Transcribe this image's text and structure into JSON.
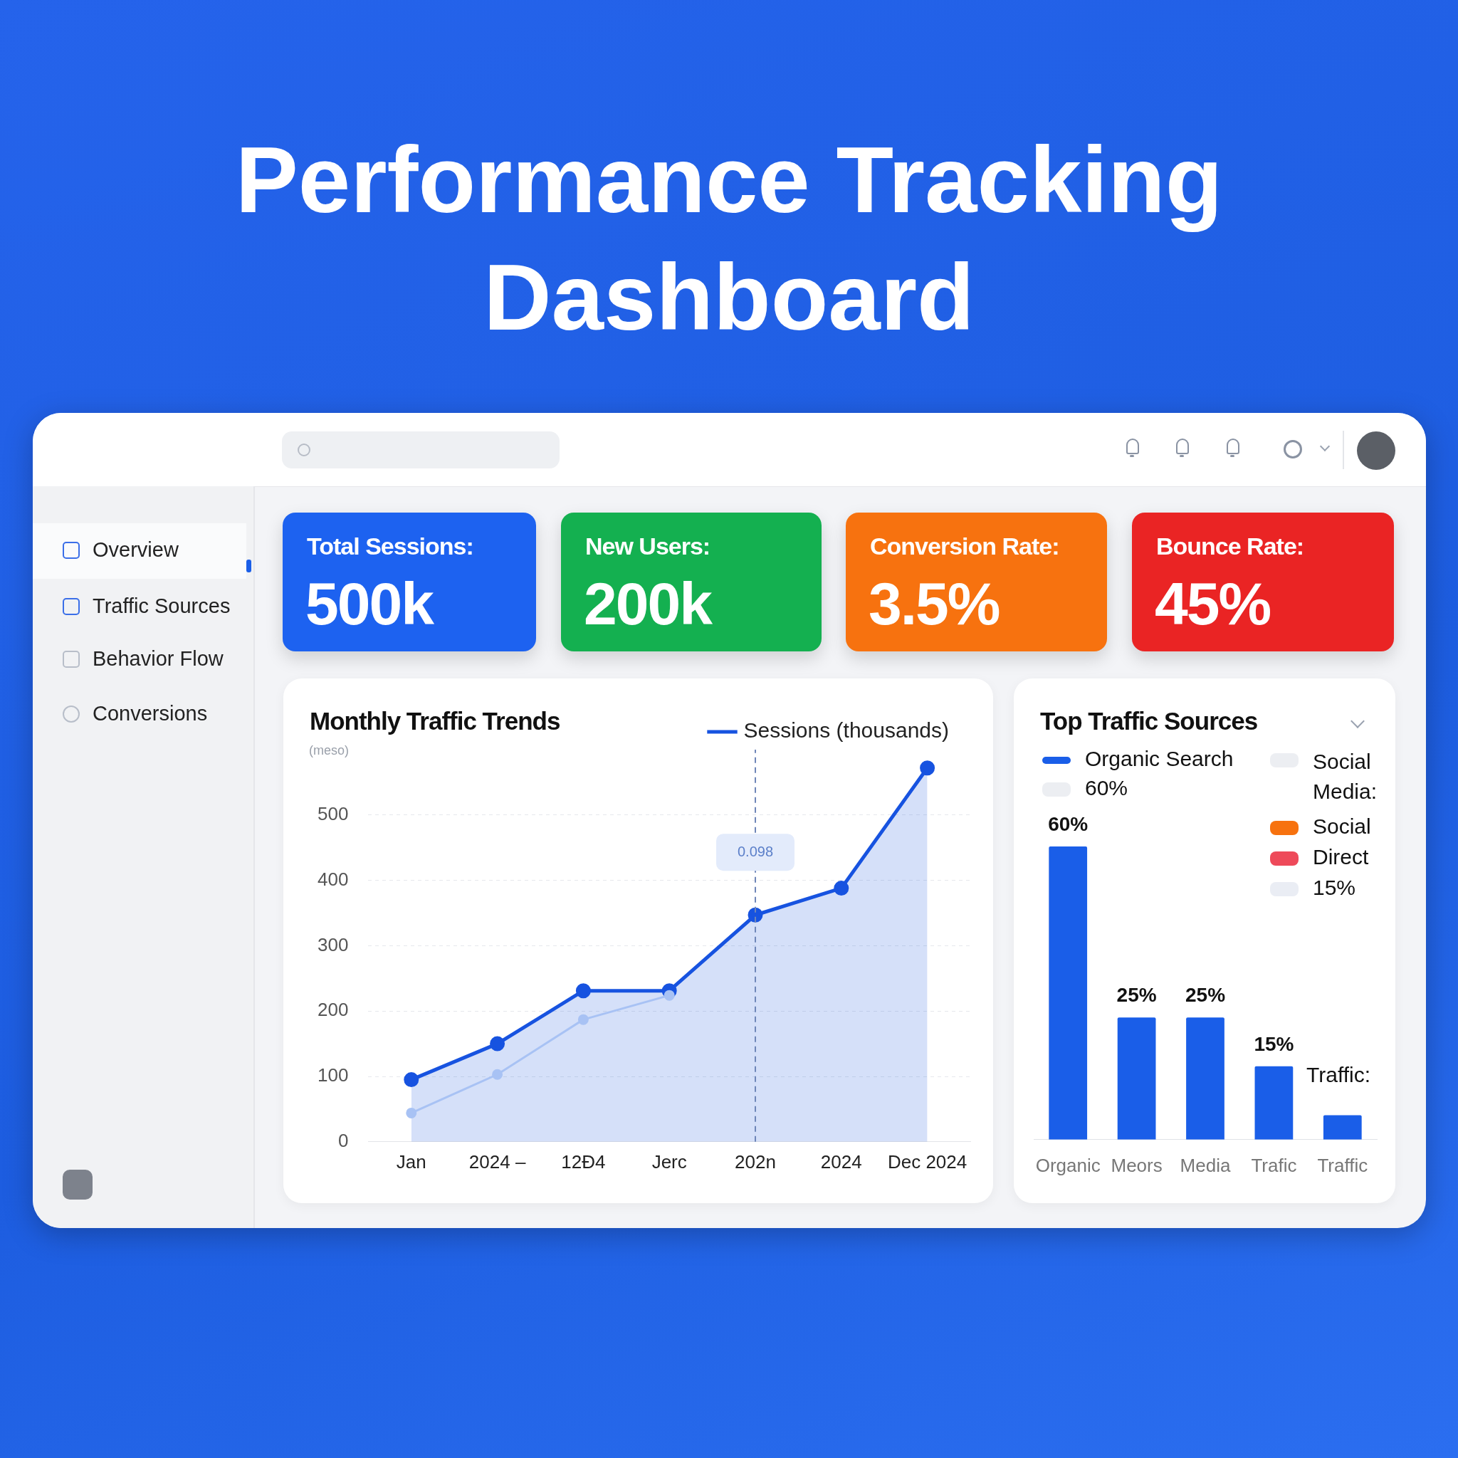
{
  "chart_data": [
    {
      "type": "other",
      "title": "Performance Tracking Dashboard",
      "annotations": [
        "Total Sessions:",
        "500k",
        "New Users:",
        "200k",
        "Conversion Rate:",
        "3.5%",
        "Bounce Rate:",
        "45%",
        "Overview",
        "Traffic Sources",
        "Behavior Flow",
        "Conversions"
      ]
    },
    {
      "type": "line",
      "title": "Monthly Traffic Trends",
      "ylabel": "(meso)",
      "categories": [
        "Jan",
        "2024 –",
        "12Đ4",
        "Jerc",
        "202n",
        "2024",
        "Dec 2024"
      ],
      "series": [
        {
          "name": "Sessions (thousands)",
          "type": "area",
          "color": "#1753e0",
          "values": [
            95,
            150,
            231,
            231,
            347,
            388,
            572
          ]
        },
        {
          "type": "line",
          "color": "#a8c2f4",
          "values": [
            44,
            103,
            187,
            224,
            null,
            null,
            null
          ]
        }
      ],
      "ylim": [
        0,
        600
      ],
      "yticks": [
        0,
        100,
        200,
        300,
        400,
        500
      ],
      "grid": "y",
      "legend": "top right",
      "marker": "circle",
      "ref_lines": [
        {
          "axis": "x",
          "value": "202n",
          "line_style": "dashed"
        }
      ],
      "annotations": [
        {
          "text": "0.098",
          "x": "202n",
          "y": 443
        }
      ]
    },
    {
      "type": "bar",
      "title": "Top Traffic Sources",
      "categories": [
        "Organic",
        "Meors",
        "Media",
        "Trafic",
        "Traffic"
      ],
      "values": [
        60,
        25,
        25,
        15,
        5
      ],
      "color": "#1a5ee8",
      "tick_labels": "x",
      "value_labels": [
        "60%",
        "25%",
        "25%",
        "15%",
        null
      ],
      "annotations": [
        "Organic Search",
        "60%",
        "Social Media:",
        "Social",
        "Direct",
        "15%",
        "Traffic:"
      ]
    }
  ]
}
